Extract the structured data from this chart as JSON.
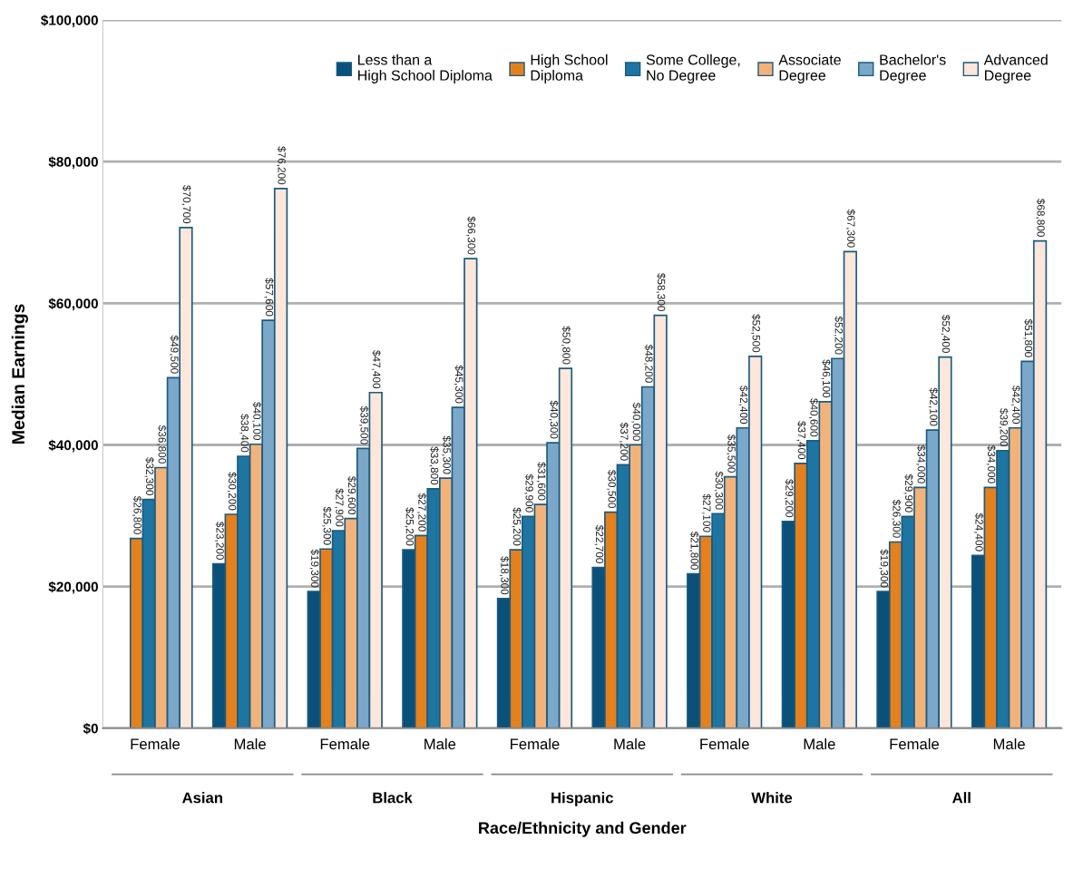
{
  "chart_data": {
    "type": "bar",
    "xlabel": "Race/Ethnicity and Gender",
    "ylabel": "Median Earnings",
    "categories": [
      "Female",
      "Male",
      "Female",
      "Male",
      "Female",
      "Male",
      "Female",
      "Male",
      "Female",
      "Male"
    ],
    "annotations": [
      "Asian",
      "Black",
      "Hispanic",
      "White",
      "All"
    ],
    "series": [
      {
        "name": "Less than a\nHigh School Diploma",
        "color": "#0a5079",
        "values": [
          null,
          23200,
          19300,
          25200,
          18300,
          22700,
          21800,
          29200,
          19300,
          24400
        ],
        "value_labels": [
          null,
          "$23,200",
          "$19,300",
          "$25,200",
          "$18,300",
          "$22,700",
          "$21,800",
          "$29,200",
          "$19,300",
          "$24,400"
        ]
      },
      {
        "name": "High School\nDiploma",
        "color": "#e3811f",
        "values": [
          26800,
          30200,
          25300,
          27200,
          25200,
          30500,
          27100,
          37400,
          26300,
          34000
        ],
        "value_labels": [
          "$26,800",
          "$30,200",
          "$25,300",
          "$27,200",
          "$25,200",
          "$30,500",
          "$27,100",
          "$37,400",
          "$26,300",
          "$34,000"
        ]
      },
      {
        "name": "Some College,\nNo Degree",
        "color": "#1f75a1",
        "values": [
          32300,
          38400,
          27900,
          33800,
          29900,
          37200,
          30300,
          40600,
          29900,
          39200
        ],
        "value_labels": [
          "$32,300",
          "$38,400",
          "$27,900",
          "$33,800",
          "$29,900",
          "$37,200",
          "$30,300",
          "$40,600",
          "$29,900",
          "$39,200"
        ]
      },
      {
        "name": "Associate\nDegree",
        "color": "#f2b37b",
        "values": [
          36800,
          40100,
          29600,
          35300,
          31600,
          40000,
          35500,
          46100,
          34000,
          42400
        ],
        "value_labels": [
          "$36,800",
          "$40,100",
          "$29,600",
          "$35,300",
          "$31,600",
          "$40,000",
          "$35,500",
          "$46,100",
          "$34,000",
          "$42,400"
        ]
      },
      {
        "name": "Bachelor's\nDegree",
        "color": "#7ba7c9",
        "values": [
          49500,
          57600,
          39500,
          45300,
          40300,
          48200,
          42400,
          52200,
          42100,
          51800
        ],
        "value_labels": [
          "$49,500",
          "$57,600",
          "$39,500",
          "$45,300",
          "$40,300",
          "$48,200",
          "$42,400",
          "$52,200",
          "$42,100",
          "$51,800"
        ]
      },
      {
        "name": "Advanced\nDegree",
        "color": "#fde6da",
        "values": [
          70700,
          76200,
          47400,
          66300,
          50800,
          58300,
          52500,
          67300,
          52400,
          68800
        ],
        "value_labels": [
          "$70,700",
          "$76,200",
          "$47,400",
          "$66,300",
          "$50,800",
          "$58,300",
          "$52,500",
          "$67,300",
          "$52,400",
          "$68,800"
        ]
      }
    ],
    "ylim": [
      0,
      100000
    ],
    "yticks": [
      {
        "value": 0,
        "label": "$0"
      },
      {
        "value": 20000,
        "label": "$20,000"
      },
      {
        "value": 40000,
        "label": "$40,000"
      },
      {
        "value": 60000,
        "label": "$60,000"
      },
      {
        "value": 80000,
        "label": "$80,000"
      },
      {
        "value": 100000,
        "label": "$100,000"
      }
    ],
    "grid": "y",
    "legend": "top right"
  }
}
